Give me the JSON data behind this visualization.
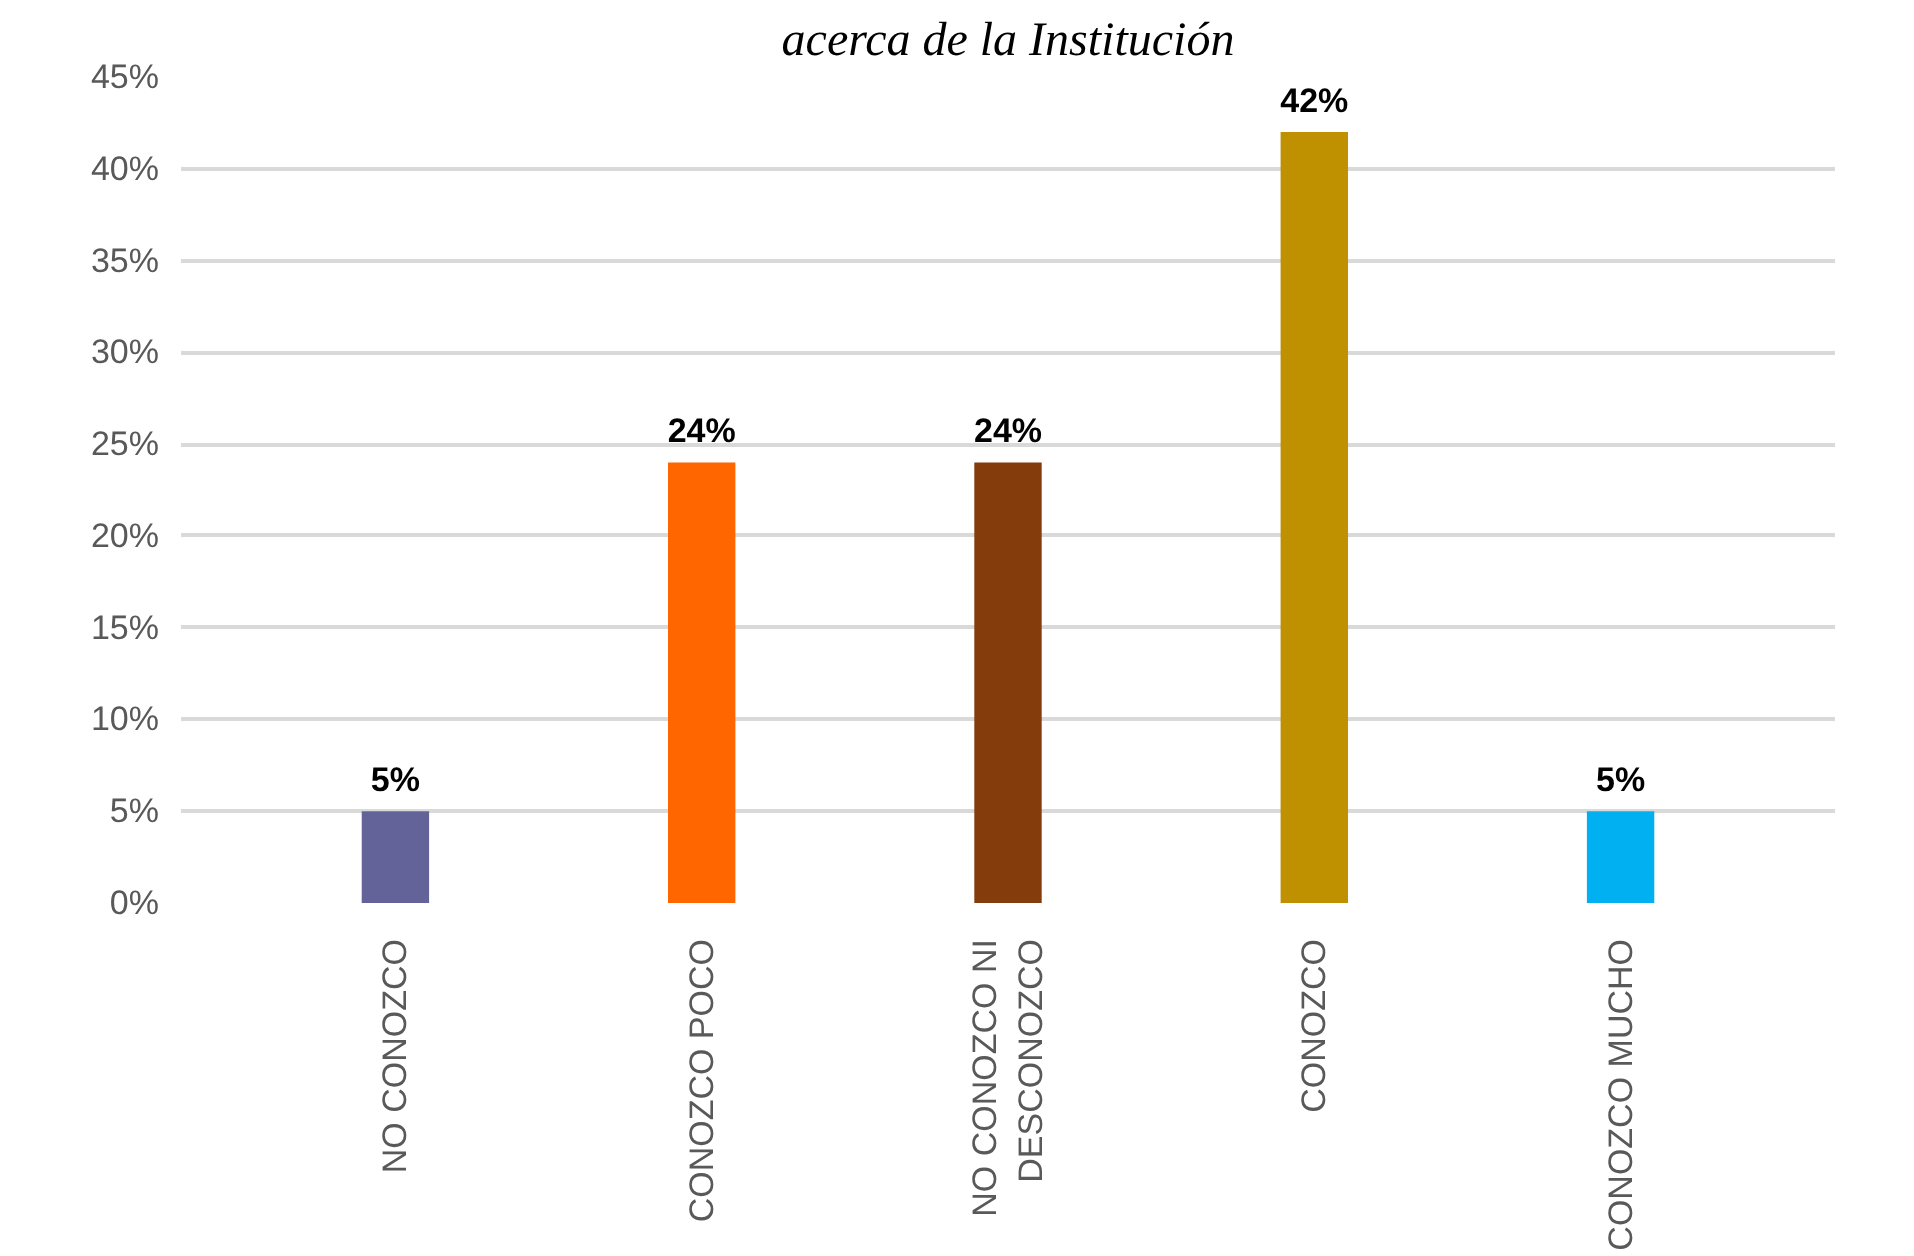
{
  "chart_data": {
    "type": "bar",
    "title": "acerca de la Institución",
    "categories": [
      "NO CONOZCO",
      "CONOZCO POCO",
      "NO CONOZCO NI DESCONOZCO",
      "CONOZCO",
      "CONOZCO MUCHO"
    ],
    "values": [
      5,
      24,
      24,
      42,
      5
    ],
    "colors": [
      "#636399",
      "#ff6600",
      "#843c0c",
      "#bf9000",
      "#00b0f0"
    ],
    "value_labels": [
      "5%",
      "24%",
      "24%",
      "42%",
      "5%"
    ],
    "ylim": [
      0,
      45
    ],
    "yticks": [
      {
        "value": 0,
        "label": "0%"
      },
      {
        "value": 5,
        "label": "5%"
      },
      {
        "value": 10,
        "label": "10%"
      },
      {
        "value": 15,
        "label": "15%"
      },
      {
        "value": 20,
        "label": "20%"
      },
      {
        "value": 25,
        "label": "25%"
      },
      {
        "value": 30,
        "label": "30%"
      },
      {
        "value": 35,
        "label": "35%"
      },
      {
        "value": 40,
        "label": "40%"
      },
      {
        "value": 45,
        "label": "45%"
      }
    ],
    "grid": "y"
  }
}
